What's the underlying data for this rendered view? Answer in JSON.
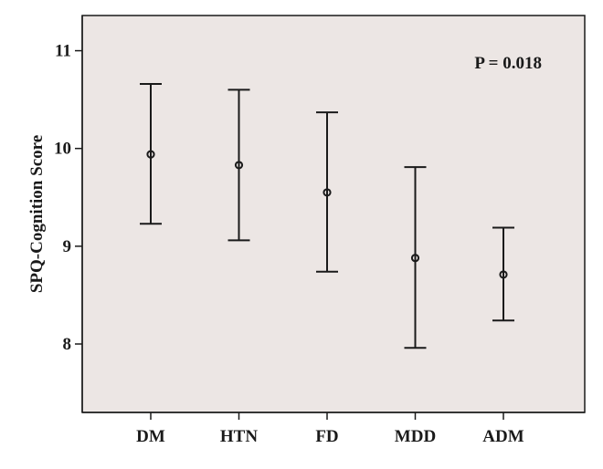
{
  "chart_data": {
    "type": "errorbar",
    "title": "",
    "xlabel": "",
    "ylabel": "SPQ-Cognition Score",
    "categories": [
      "DM",
      "HTN",
      "FD",
      "MDD",
      "ADM"
    ],
    "series": [
      {
        "mean": [
          9.94,
          9.83,
          9.55,
          8.88,
          8.71
        ],
        "lower": [
          9.23,
          9.06,
          8.74,
          7.96,
          8.24
        ],
        "upper": [
          10.66,
          10.6,
          10.37,
          9.81,
          9.19
        ]
      }
    ],
    "yticks": [
      8,
      9,
      10,
      11
    ],
    "ylim": [
      7.3,
      11.36
    ],
    "grid": false,
    "annotation": "P = 0.018",
    "colors": {
      "plot_background": "#ece6e4",
      "ink": "#1a1a1a"
    }
  }
}
